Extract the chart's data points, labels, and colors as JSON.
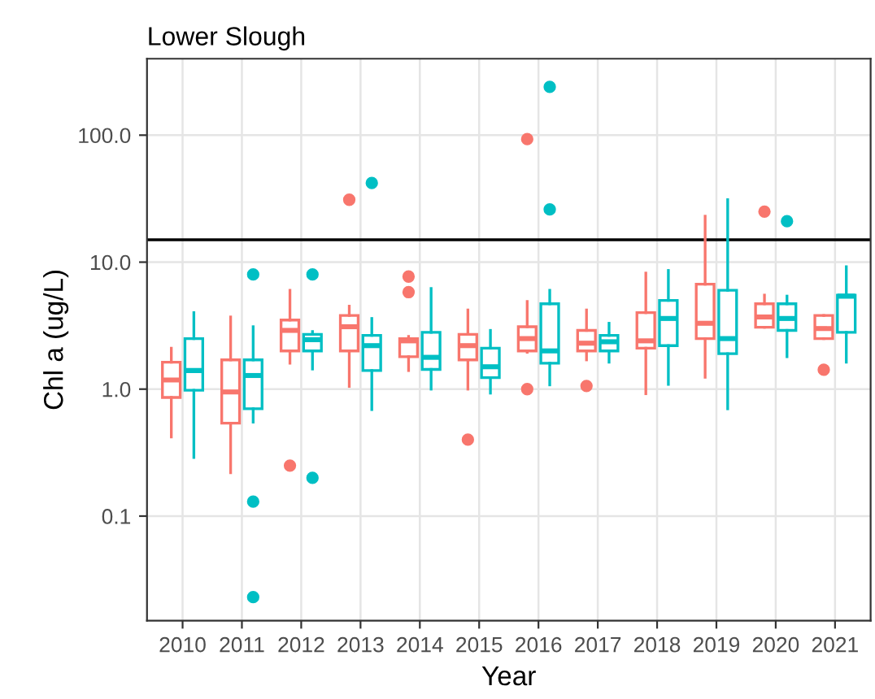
{
  "chart_data": {
    "type": "box",
    "title": "Lower Slough",
    "xlabel": "Year",
    "ylabel": "Chl a (ug/L)",
    "log": "y",
    "grid": true,
    "legend": false,
    "categories": [
      "2010",
      "2011",
      "2012",
      "2013",
      "2014",
      "2015",
      "2016",
      "2017",
      "2018",
      "2019",
      "2020",
      "2021"
    ],
    "ylim": [
      0.015,
      400
    ],
    "yticks": [
      {
        "value": 0.1,
        "label": "0.1"
      },
      {
        "value": 1,
        "label": "1.0"
      },
      {
        "value": 10,
        "label": "10.0"
      },
      {
        "value": 100,
        "label": "100.0"
      }
    ],
    "ref_lines": [
      {
        "axis": "y",
        "value": 15,
        "color": "#000000"
      }
    ],
    "series": [
      {
        "color": "#f8766d",
        "boxes": [
          {
            "low": 0.42,
            "q1": 0.86,
            "median": 1.18,
            "q3": 1.63,
            "high": 2.1
          },
          {
            "low": 0.22,
            "q1": 0.54,
            "median": 0.95,
            "q3": 1.7,
            "high": 3.7
          },
          {
            "low": 1.6,
            "q1": 2.0,
            "median": 2.9,
            "q3": 3.5,
            "high": 6.0,
            "outliers": [
              0.25
            ]
          },
          {
            "low": 1.05,
            "q1": 2.0,
            "median": 3.1,
            "q3": 3.8,
            "high": 4.5,
            "outliers": [
              31
            ]
          },
          {
            "low": 1.4,
            "q1": 1.8,
            "median": 2.4,
            "q3": 2.5,
            "high": 2.6,
            "outliers": [
              7.7,
              5.8
            ]
          },
          {
            "low": 1.0,
            "q1": 1.7,
            "median": 2.2,
            "q3": 2.7,
            "high": 4.2,
            "outliers": [
              0.4
            ]
          },
          {
            "low": 1.95,
            "q1": 2.0,
            "median": 2.5,
            "q3": 3.1,
            "high": 4.9,
            "outliers": [
              93,
              1.0
            ]
          },
          {
            "low": 1.7,
            "q1": 2.0,
            "median": 2.3,
            "q3": 2.9,
            "high": 4.2,
            "outliers": [
              1.06
            ]
          },
          {
            "low": 0.92,
            "q1": 2.1,
            "median": 2.4,
            "q3": 4.0,
            "high": 8.2
          },
          {
            "low": 1.24,
            "q1": 2.5,
            "median": 3.3,
            "q3": 6.7,
            "high": 23
          },
          {
            "low": 3.07,
            "q1": 3.07,
            "median": 3.7,
            "q3": 4.7,
            "high": 5.5,
            "outliers": [
              25
            ]
          },
          {
            "low": 2.5,
            "q1": 2.5,
            "median": 3.0,
            "q3": 3.8,
            "high": 3.8,
            "outliers": [
              1.42
            ]
          }
        ]
      },
      {
        "color": "#00bfc4",
        "boxes": [
          {
            "low": 0.29,
            "q1": 0.98,
            "median": 1.4,
            "q3": 2.5,
            "high": 4.0
          },
          {
            "low": 0.55,
            "q1": 0.7,
            "median": 1.28,
            "q3": 1.7,
            "high": 3.1,
            "outliers": [
              8.0,
              0.13,
              0.023
            ]
          },
          {
            "low": 1.44,
            "q1": 2.0,
            "median": 2.45,
            "q3": 2.7,
            "high": 2.84,
            "outliers": [
              8.0,
              0.2
            ]
          },
          {
            "low": 0.69,
            "q1": 1.4,
            "median": 2.2,
            "q3": 2.65,
            "high": 3.6,
            "outliers": [
              42
            ]
          },
          {
            "low": 1.0,
            "q1": 1.43,
            "median": 1.78,
            "q3": 2.8,
            "high": 6.2
          },
          {
            "low": 0.93,
            "q1": 1.23,
            "median": 1.5,
            "q3": 2.1,
            "high": 2.9
          },
          {
            "low": 1.08,
            "q1": 1.6,
            "median": 2.0,
            "q3": 4.7,
            "high": 6.0,
            "outliers": [
              240,
              26
            ]
          },
          {
            "low": 1.63,
            "q1": 2.0,
            "median": 2.36,
            "q3": 2.65,
            "high": 3.3
          },
          {
            "low": 1.09,
            "q1": 2.2,
            "median": 3.6,
            "q3": 5.0,
            "high": 8.6
          },
          {
            "low": 0.7,
            "q1": 1.9,
            "median": 2.5,
            "q3": 6.0,
            "high": 31
          },
          {
            "low": 1.8,
            "q1": 2.9,
            "median": 3.6,
            "q3": 4.7,
            "high": 5.4,
            "outliers": [
              21
            ]
          },
          {
            "low": 1.63,
            "q1": 2.8,
            "median": 5.4,
            "q3": 5.5,
            "high": 9.2
          }
        ]
      }
    ]
  }
}
